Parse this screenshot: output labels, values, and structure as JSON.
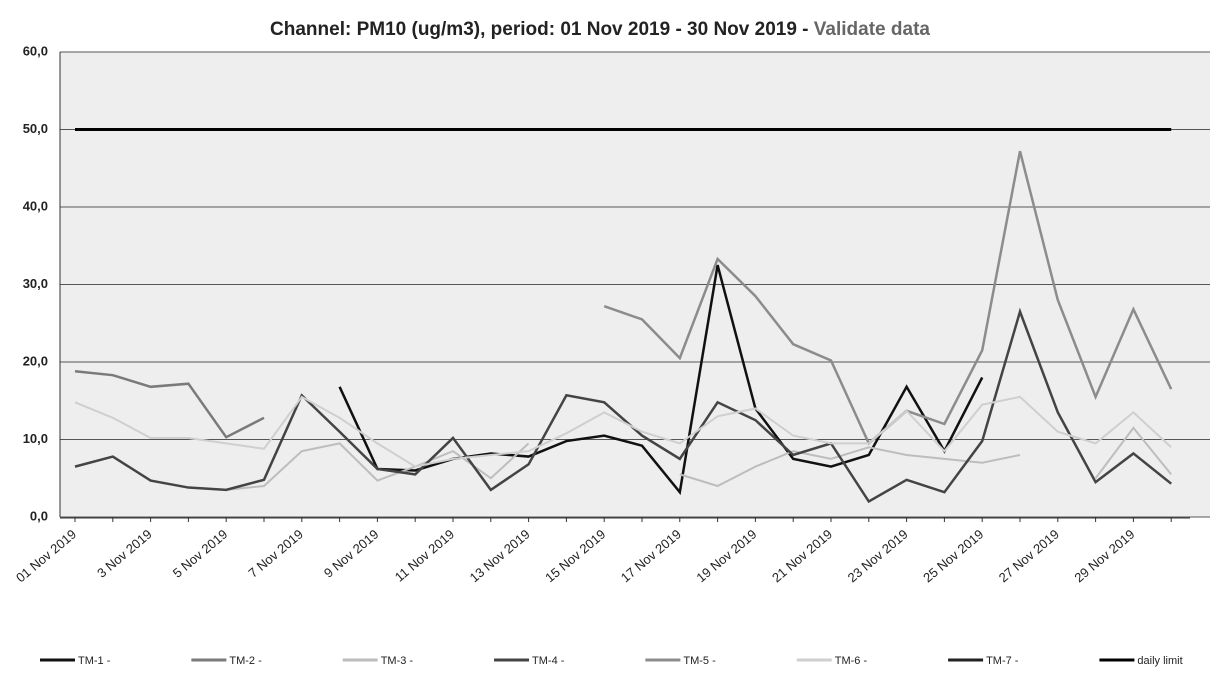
{
  "chart_data": {
    "type": "line",
    "title": "Channel: PM10 (ug/m3), period: 01 Nov 2019 - 30 Nov 2019 -",
    "subtitle": "Validate data",
    "categories": [
      "01 Nov 2019",
      null,
      "3 Nov 2019",
      null,
      "5 Nov 2019",
      null,
      "7 Nov 2019",
      null,
      "9 Nov 2019",
      null,
      "11 Nov 2019",
      null,
      "13 Nov 2019",
      null,
      "15 Nov 2019",
      null,
      "17 Nov 2019",
      null,
      "19 Nov 2019",
      null,
      "21 Nov 2019",
      null,
      "23 Nov 2019",
      null,
      "25 Nov 2019",
      null,
      "27 Nov 2019",
      null,
      "29 Nov 2019",
      null
    ],
    "ylim": [
      0,
      60
    ],
    "yticks": [
      {
        "value": 0,
        "label": "0,0"
      },
      {
        "value": 10,
        "label": "10,0"
      },
      {
        "value": 20,
        "label": "20,0"
      },
      {
        "value": 30,
        "label": "30,0"
      },
      {
        "value": 40,
        "label": "40,0"
      },
      {
        "value": 50,
        "label": "50,0"
      },
      {
        "value": 60,
        "label": "60,0"
      }
    ],
    "grid": true,
    "legend": "bottom",
    "series": [
      {
        "name": "TM-1 -",
        "color": "#111111",
        "width": 2.5,
        "values": [
          null,
          null,
          null,
          null,
          null,
          null,
          null,
          16.8,
          6.2,
          6.0,
          7.5,
          8.2,
          7.8,
          9.8,
          10.5,
          9.2,
          3.2,
          32.5,
          14.0,
          7.5,
          6.5,
          8.0,
          16.8,
          8.5,
          18.0,
          null,
          null,
          null,
          null,
          null
        ]
      },
      {
        "name": "TM-2 -",
        "color": "#7a7a7a",
        "width": 2.5,
        "values": [
          18.8,
          18.3,
          16.8,
          17.2,
          10.3,
          12.8,
          null,
          null,
          null,
          null,
          null,
          null,
          null,
          null,
          null,
          null,
          null,
          null,
          null,
          null,
          null,
          null,
          null,
          null,
          null,
          null,
          null,
          null,
          null,
          null
        ]
      },
      {
        "name": "TM-3 -",
        "color": "#bdbdbd",
        "width": 2,
        "values": [
          null,
          null,
          null,
          null,
          3.5,
          4.0,
          8.5,
          9.5,
          4.7,
          6.5,
          8.5,
          5.0,
          9.5,
          null,
          null,
          null,
          5.5,
          4.0,
          6.5,
          8.5,
          7.5,
          9.0,
          8.0,
          7.5,
          7.0,
          8.0,
          null,
          5.0,
          11.5,
          5.5
        ]
      },
      {
        "name": "TM-4 -",
        "color": "#444444",
        "width": 2.5,
        "values": [
          6.5,
          7.8,
          4.7,
          3.8,
          3.5,
          4.8,
          15.7,
          11.0,
          6.2,
          5.5,
          10.2,
          3.5,
          6.8,
          15.7,
          14.8,
          10.5,
          7.5,
          14.8,
          12.5,
          8.0,
          9.5,
          2.0,
          4.8,
          3.2,
          9.8,
          26.5,
          13.5,
          4.5,
          8.2,
          4.3
        ]
      },
      {
        "name": "TM-5 -",
        "color": "#8c8c8c",
        "width": 2.5,
        "values": [
          null,
          null,
          null,
          null,
          null,
          null,
          null,
          null,
          null,
          null,
          null,
          null,
          null,
          null,
          27.2,
          25.5,
          20.5,
          33.3,
          28.5,
          22.3,
          20.2,
          9.5,
          13.7,
          12.0,
          21.5,
          47.2,
          28.0,
          15.5,
          26.8,
          16.5
        ]
      },
      {
        "name": "TM-6 -",
        "color": "#cfcfcf",
        "width": 2,
        "values": [
          14.8,
          12.8,
          10.2,
          10.2,
          9.5,
          8.8,
          15.5,
          12.8,
          9.5,
          6.5,
          7.5,
          8.0,
          8.5,
          10.8,
          13.5,
          11.0,
          9.5,
          13.0,
          14.0,
          10.5,
          9.5,
          9.5,
          13.7,
          8.5,
          14.5,
          15.5,
          11.0,
          9.5,
          13.5,
          9.0
        ]
      },
      {
        "name": "TM-7 -",
        "color": "#222222",
        "width": 2,
        "values": [
          null,
          null,
          null,
          null,
          null,
          null,
          null,
          null,
          null,
          null,
          null,
          null,
          null,
          null,
          null,
          null,
          null,
          null,
          null,
          null,
          null,
          null,
          null,
          null,
          null,
          null,
          null,
          null,
          null,
          null
        ]
      },
      {
        "name": "daily limit",
        "color": "#000000",
        "width": 3,
        "values": [
          50,
          50,
          50,
          50,
          50,
          50,
          50,
          50,
          50,
          50,
          50,
          50,
          50,
          50,
          50,
          50,
          50,
          50,
          50,
          50,
          50,
          50,
          50,
          50,
          50,
          50,
          50,
          50,
          50,
          50
        ]
      }
    ]
  }
}
